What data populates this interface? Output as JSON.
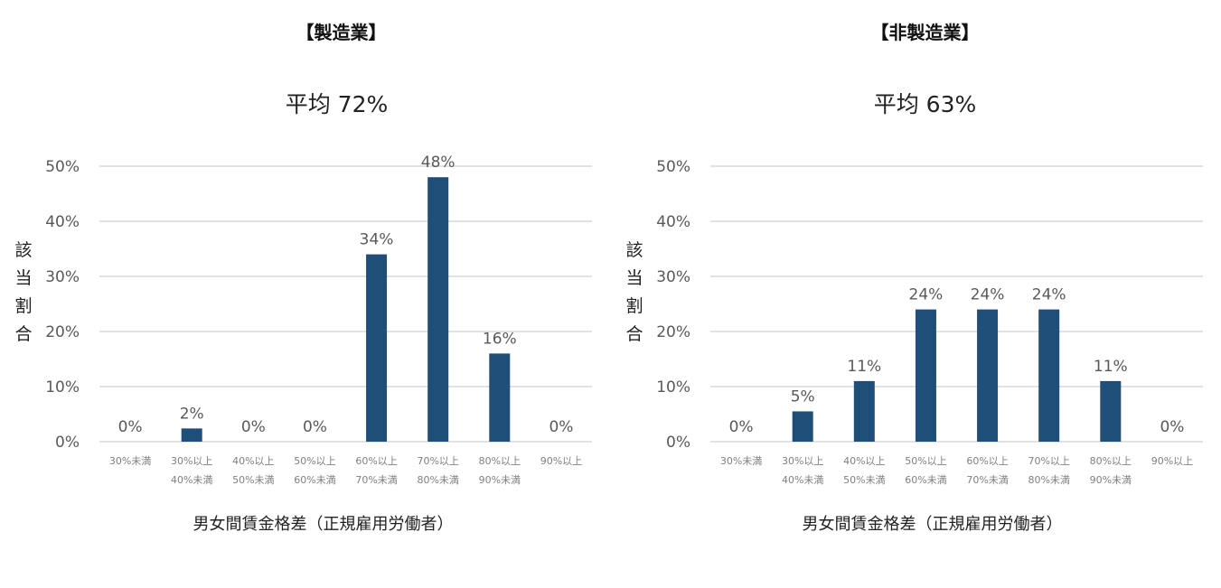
{
  "colors": {
    "bar": "#1f4e79",
    "grid": "#d9d9d9",
    "text": "#595959"
  },
  "chart_data": [
    {
      "type": "bar",
      "title": "【製造業】",
      "subtitle": "平均 72%",
      "xlabel": "男女間賃金格差（正規雇用労働者）",
      "ylabel": "該当割合",
      "ylim": [
        0,
        50
      ],
      "yticks": [
        "0%",
        "10%",
        "20%",
        "30%",
        "40%",
        "50%"
      ],
      "grid": true,
      "categories": [
        [
          "30%未満"
        ],
        [
          "30%以上",
          "40%未満"
        ],
        [
          "40%以上",
          "50%未満"
        ],
        [
          "50%以上",
          "60%未満"
        ],
        [
          "60%以上",
          "70%未満"
        ],
        [
          "70%以上",
          "80%未満"
        ],
        [
          "80%以上",
          "90%未満"
        ],
        [
          "90%以上"
        ]
      ],
      "values": [
        0,
        2.4,
        0,
        0,
        34,
        48,
        16,
        0
      ],
      "labels": [
        "0%",
        "2%",
        "0%",
        "0%",
        "34%",
        "48%",
        "16%",
        "0%"
      ]
    },
    {
      "type": "bar",
      "title": "【非製造業】",
      "subtitle": "平均 63%",
      "xlabel": "男女間賃金格差（正規雇用労働者）",
      "ylabel": "該当割合",
      "ylim": [
        0,
        50
      ],
      "yticks": [
        "0%",
        "10%",
        "20%",
        "30%",
        "40%",
        "50%"
      ],
      "grid": true,
      "categories": [
        [
          "30%未満"
        ],
        [
          "30%以上",
          "40%未満"
        ],
        [
          "40%以上",
          "50%未満"
        ],
        [
          "50%以上",
          "60%未満"
        ],
        [
          "60%以上",
          "70%未満"
        ],
        [
          "70%以上",
          "80%未満"
        ],
        [
          "80%以上",
          "90%未満"
        ],
        [
          "90%以上"
        ]
      ],
      "values": [
        0,
        5.5,
        11,
        24,
        24,
        24,
        11,
        0
      ],
      "labels": [
        "0%",
        "5%",
        "11%",
        "24%",
        "24%",
        "24%",
        "11%",
        "0%"
      ]
    }
  ]
}
